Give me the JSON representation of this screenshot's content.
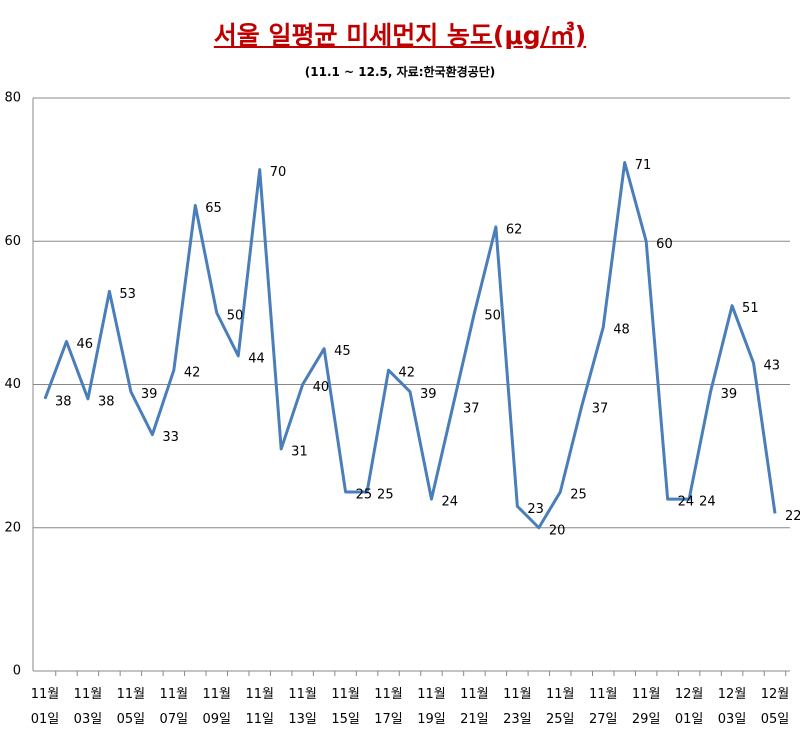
{
  "chart_data": {
    "type": "line",
    "title": "서울 일평균 미세먼지 농도(μg/㎥)",
    "subtitle": "(11.1 ~ 12.5, 자료:한국환경공단)",
    "categories": [
      "11월\n01일",
      null,
      "11월\n03일",
      null,
      "11월\n05일",
      null,
      "11월\n07일",
      null,
      "11월\n09일",
      null,
      "11월\n11일",
      null,
      "11월\n13일",
      null,
      "11월\n15일",
      null,
      "11월\n17일",
      null,
      "11월\n19일",
      null,
      "11월\n21일",
      null,
      "11월\n23일",
      null,
      "11월\n25일",
      null,
      "11월\n27일",
      null,
      "11월\n29일",
      null,
      "12월\n01일",
      null,
      "12월\n03일",
      null,
      "12월\n05일"
    ],
    "values": [
      38,
      46,
      38,
      53,
      39,
      33,
      42,
      65,
      50,
      44,
      70,
      31,
      40,
      45,
      25,
      25,
      42,
      39,
      24,
      37,
      50,
      62,
      23,
      20,
      25,
      37,
      48,
      71,
      60,
      24,
      24,
      39,
      51,
      43,
      22
    ],
    "color": "#4a7ebb",
    "ylim": [
      0,
      80
    ],
    "yticks": [
      0,
      20,
      40,
      60,
      80
    ],
    "grid": true
  }
}
